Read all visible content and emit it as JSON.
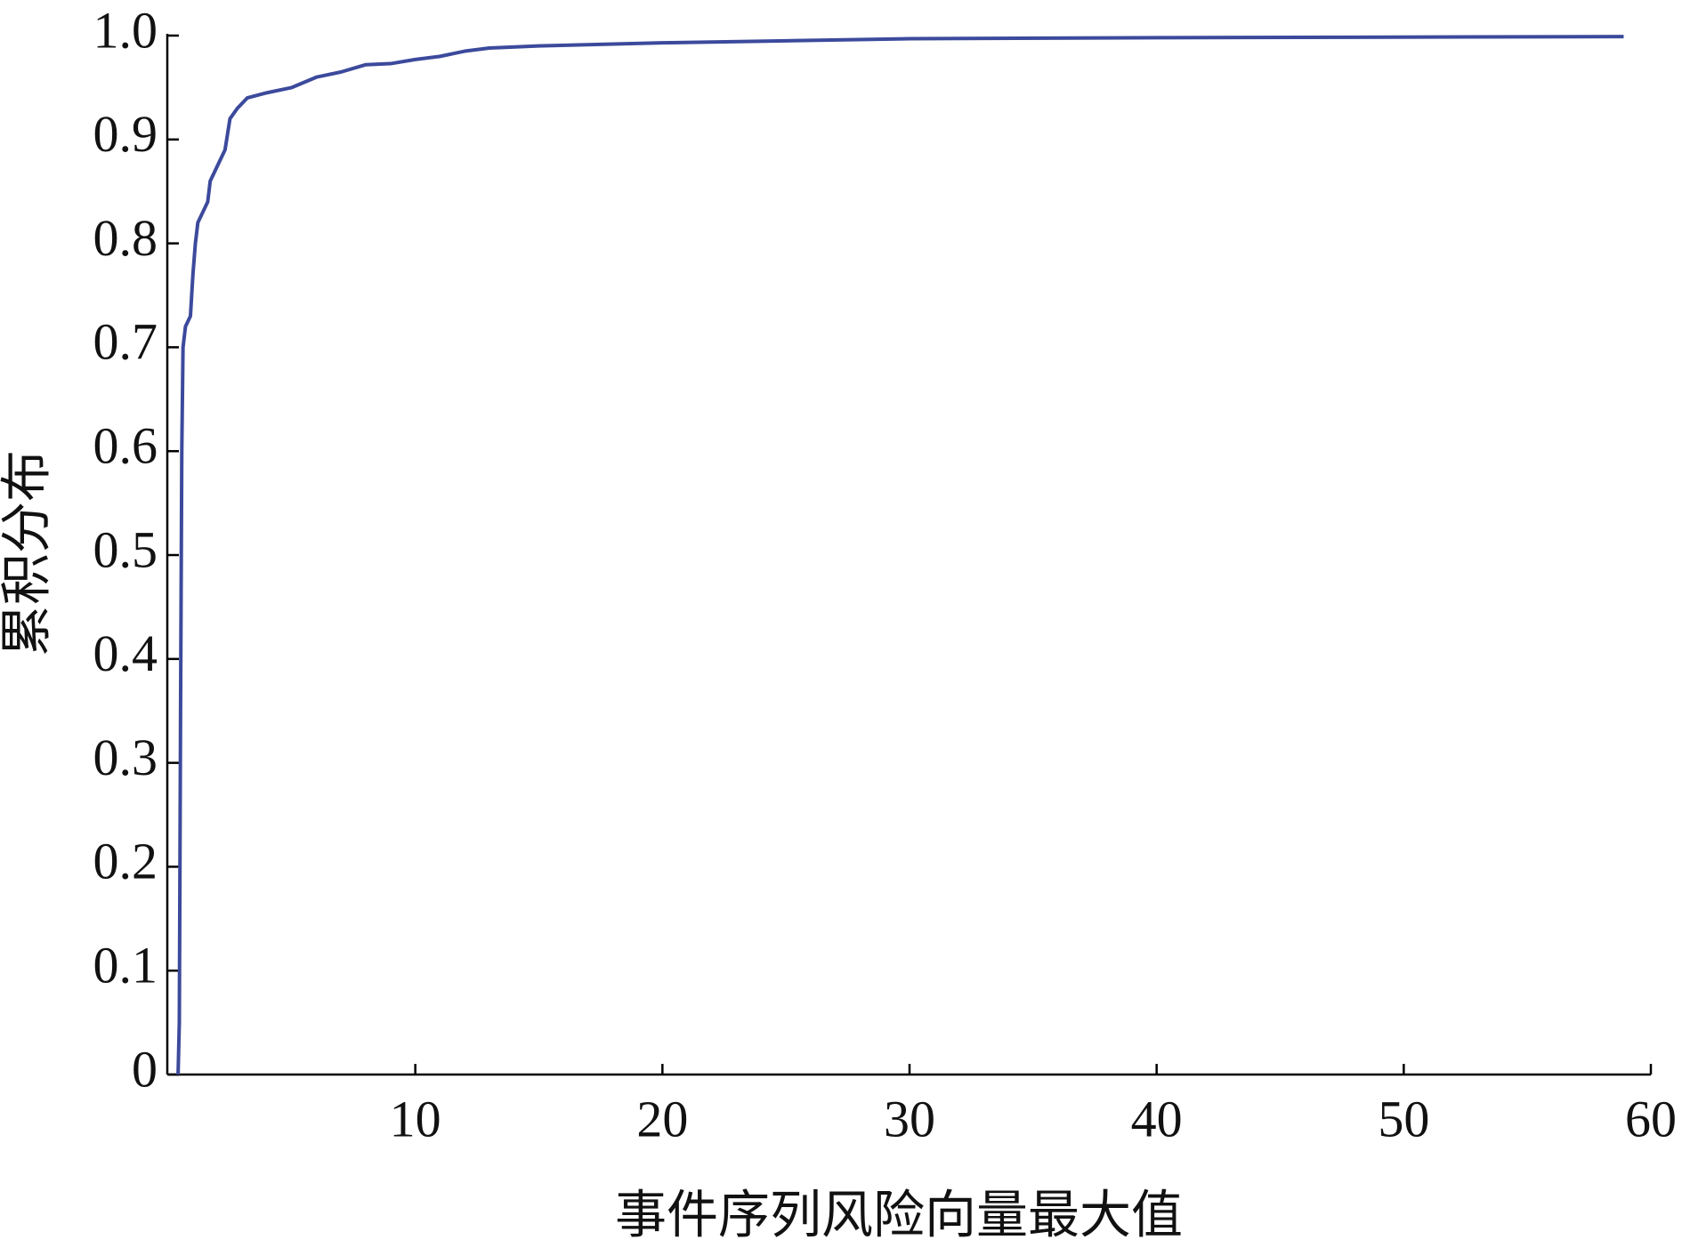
{
  "chart_data": {
    "type": "line",
    "xlabel": "事件序列风险向量最大值",
    "ylabel": "累积分布",
    "xlim": [
      0,
      60
    ],
    "xticks": [
      10,
      20,
      30,
      40,
      50,
      60
    ],
    "ylim": [
      0,
      1
    ],
    "yticks": [
      0,
      0.1,
      0.2,
      0.3,
      0.4,
      0.5,
      0.6,
      0.7,
      0.8,
      0.9,
      {
        "value": 1,
        "label": "1.0"
      }
    ],
    "grid": false,
    "series": [
      {
        "color": "#3c4a9c",
        "x": [
          0.4,
          0.45,
          0.5,
          0.55,
          0.6,
          0.7,
          0.9,
          1.0,
          1.1,
          1.2,
          1.4,
          1.6,
          1.7,
          1.9,
          2.1,
          2.3,
          2.5,
          2.8,
          3.2,
          4,
          5,
          6,
          7,
          8,
          9,
          10,
          11,
          12,
          13,
          15,
          20,
          25,
          30,
          40,
          58.9
        ],
        "values": [
          0,
          0.05,
          0.35,
          0.6,
          0.7,
          0.72,
          0.73,
          0.77,
          0.8,
          0.82,
          0.83,
          0.84,
          0.86,
          0.87,
          0.88,
          0.89,
          0.92,
          0.93,
          0.94,
          0.945,
          0.95,
          0.96,
          0.965,
          0.972,
          0.973,
          0.977,
          0.98,
          0.985,
          0.988,
          0.99,
          0.993,
          0.995,
          0.997,
          0.998,
          0.999
        ]
      }
    ]
  }
}
